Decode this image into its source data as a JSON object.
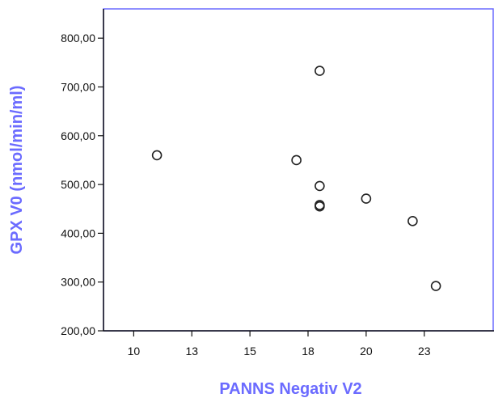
{
  "chart_data": {
    "type": "scatter",
    "xlabel": "PANNS Negativ V2",
    "ylabel": "GPX V0 (nmol/min/ml)",
    "xlim": [
      8.7,
      25.5
    ],
    "ylim": [
      200,
      860
    ],
    "x_ticks": [
      {
        "value": 10.0,
        "label": "10"
      },
      {
        "value": 12.5,
        "label": "13"
      },
      {
        "value": 15.0,
        "label": "15"
      },
      {
        "value": 17.5,
        "label": "18"
      },
      {
        "value": 20.0,
        "label": "20"
      },
      {
        "value": 22.5,
        "label": "23"
      }
    ],
    "y_ticks": [
      {
        "value": 200,
        "label": "200,00"
      },
      {
        "value": 300,
        "label": "300,00"
      },
      {
        "value": 400,
        "label": "400,00"
      },
      {
        "value": 500,
        "label": "500,00"
      },
      {
        "value": 600,
        "label": "600,00"
      },
      {
        "value": 700,
        "label": "700,00"
      },
      {
        "value": 800,
        "label": "800,00"
      }
    ],
    "points": [
      {
        "x": 11.0,
        "y": 560
      },
      {
        "x": 17.0,
        "y": 550
      },
      {
        "x": 18.0,
        "y": 733
      },
      {
        "x": 18.0,
        "y": 497
      },
      {
        "x": 18.0,
        "y": 458
      },
      {
        "x": 18.0,
        "y": 455
      },
      {
        "x": 20.0,
        "y": 471
      },
      {
        "x": 22.0,
        "y": 425
      },
      {
        "x": 23.0,
        "y": 292
      }
    ],
    "grid": false,
    "colors": {
      "axis_frame": "#6b6bff",
      "axis_title": "#6b6bff",
      "marker_stroke": "#222222",
      "tick": "#111111"
    }
  }
}
